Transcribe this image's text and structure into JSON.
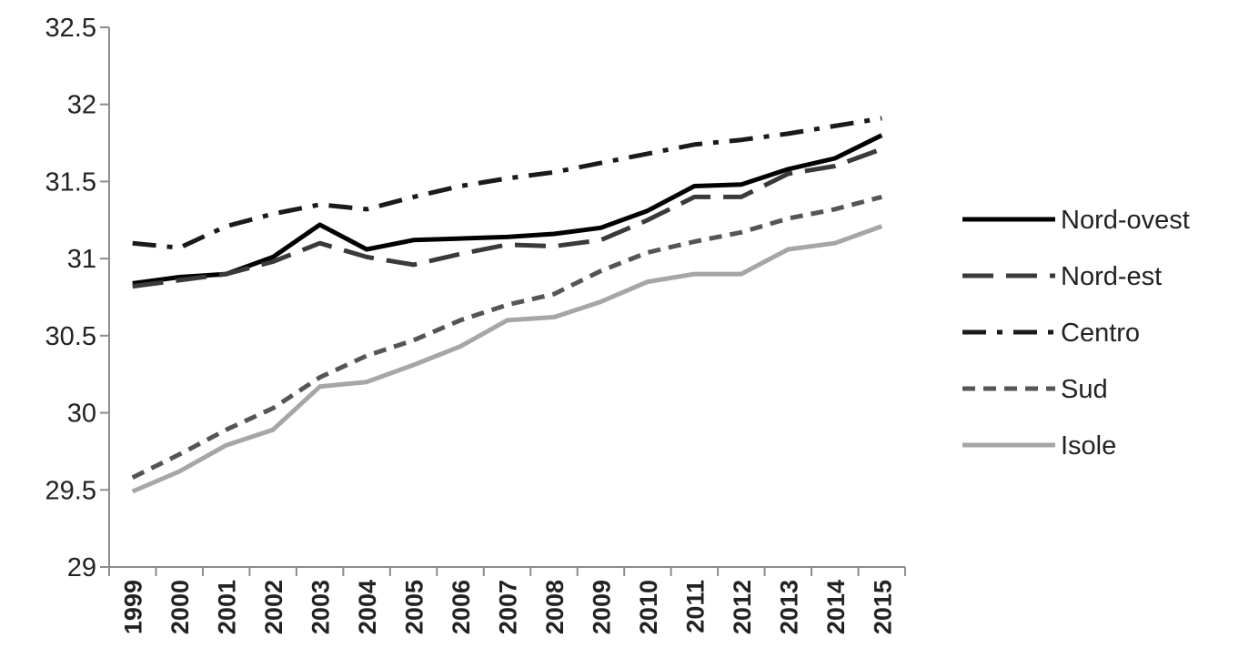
{
  "chart_data": {
    "type": "line",
    "title": "",
    "xlabel": "",
    "ylabel": "",
    "ylim": [
      29,
      32.5
    ],
    "y_ticks": [
      "29",
      "29.5",
      "30",
      "30.5",
      "31",
      "31.5",
      "32",
      "32.5"
    ],
    "grid": false,
    "legend_position": "right",
    "categories": [
      "1999",
      "2000",
      "2001",
      "2002",
      "2003",
      "2004",
      "2005",
      "2006",
      "2007",
      "2008",
      "2009",
      "2010",
      "2011",
      "2012",
      "2013",
      "2014",
      "2015"
    ],
    "series": [
      {
        "name": "Nord-ovest",
        "color": "#000000",
        "style": "solid",
        "values": [
          30.84,
          30.88,
          30.9,
          31.01,
          31.22,
          31.06,
          31.12,
          31.13,
          31.14,
          31.16,
          31.2,
          31.31,
          31.47,
          31.48,
          31.58,
          31.65,
          31.8
        ]
      },
      {
        "name": "Nord-est",
        "color": "#3a3a3a",
        "style": "long-dash",
        "values": [
          30.82,
          30.86,
          30.9,
          30.98,
          31.1,
          31.01,
          30.96,
          31.03,
          31.09,
          31.08,
          31.12,
          31.25,
          31.4,
          31.4,
          31.55,
          31.6,
          31.71
        ]
      },
      {
        "name": "Centro",
        "color": "#1a1a1a",
        "style": "dash-dot",
        "values": [
          31.1,
          31.07,
          31.21,
          31.29,
          31.35,
          31.32,
          31.4,
          31.47,
          31.52,
          31.56,
          31.62,
          31.68,
          31.74,
          31.77,
          31.81,
          31.86,
          31.91
        ]
      },
      {
        "name": "Sud",
        "color": "#555555",
        "style": "short-dash",
        "values": [
          29.58,
          29.73,
          29.89,
          30.03,
          30.23,
          30.37,
          30.47,
          30.6,
          30.7,
          30.77,
          30.92,
          31.04,
          31.11,
          31.17,
          31.26,
          31.32,
          31.4
        ]
      },
      {
        "name": "Isole",
        "color": "#a6a6a6",
        "style": "solid",
        "values": [
          29.49,
          29.62,
          29.79,
          29.89,
          30.17,
          30.2,
          30.31,
          30.43,
          30.6,
          30.62,
          30.72,
          30.85,
          30.9,
          30.9,
          31.06,
          31.1,
          31.21
        ]
      }
    ]
  }
}
